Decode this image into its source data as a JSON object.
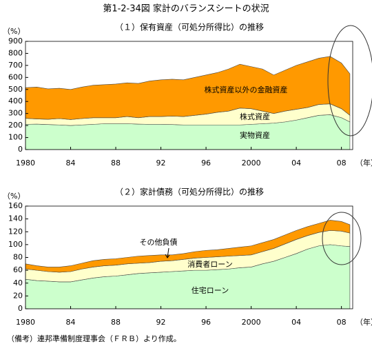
{
  "title": "第1-2-34図 家計のバランスシートの状況",
  "footnote": "（備考）連邦準備制度理事会（ＦＲＢ）より作成。",
  "chart_data": [
    {
      "type": "stacked-area",
      "title": "（１）保有資産（可処分所得比）の推移",
      "y_label": "（%）",
      "x_label": "（年）",
      "x": [
        1980,
        1981,
        1982,
        1983,
        1984,
        1985,
        1986,
        1987,
        1988,
        1989,
        1990,
        1991,
        1992,
        1993,
        1994,
        1995,
        1996,
        1997,
        1998,
        1999,
        2000,
        2001,
        2002,
        2003,
        2004,
        2005,
        2006,
        2007,
        2008,
        2008.75
      ],
      "xlim": [
        1980,
        2009
      ],
      "xticks": [
        1980,
        {
          "value": 1984,
          "label": "84"
        },
        {
          "value": 1988,
          "label": "88"
        },
        {
          "value": 1992,
          "label": "92"
        },
        {
          "value": 1996,
          "label": "96"
        },
        2000,
        {
          "value": 2004,
          "label": "04"
        },
        {
          "value": 2008,
          "label": "08"
        }
      ],
      "ylim": [
        0,
        900
      ],
      "yticks": [
        0,
        100,
        200,
        300,
        400,
        500,
        600,
        700,
        800,
        900
      ],
      "series": [
        {
          "name": "実物資産",
          "color": "#ccffcc",
          "values": [
            210,
            212,
            208,
            205,
            200,
            205,
            210,
            215,
            215,
            215,
            212,
            210,
            210,
            208,
            205,
            205,
            205,
            205,
            205,
            205,
            210,
            215,
            220,
            230,
            245,
            265,
            285,
            290,
            265,
            230
          ]
        },
        {
          "name": "株式資産",
          "color": "#ffffcc",
          "values": [
            50,
            43,
            44,
            53,
            50,
            53,
            55,
            50,
            50,
            60,
            53,
            65,
            65,
            70,
            70,
            80,
            90,
            105,
            115,
            140,
            130,
            105,
            80,
            90,
            90,
            85,
            90,
            90,
            75,
            55
          ]
        },
        {
          "name": "株式資産以外の金融資産",
          "color": "#ff9900",
          "values": [
            255,
            265,
            253,
            252,
            250,
            262,
            270,
            275,
            280,
            280,
            285,
            295,
            305,
            307,
            305,
            315,
            325,
            330,
            350,
            365,
            350,
            350,
            320,
            340,
            365,
            380,
            385,
            395,
            380,
            345
          ]
        }
      ]
    },
    {
      "type": "stacked-area",
      "title": "（２）家計債務（可処分所得比）の推移",
      "y_label": "（%）",
      "x_label": "（年）",
      "x": [
        1980,
        1981,
        1982,
        1983,
        1984,
        1985,
        1986,
        1987,
        1988,
        1989,
        1990,
        1991,
        1992,
        1993,
        1994,
        1995,
        1996,
        1997,
        1998,
        1999,
        2000,
        2001,
        2002,
        2003,
        2004,
        2005,
        2006,
        2007,
        2008,
        2008.75
      ],
      "xlim": [
        1980,
        2009
      ],
      "xticks": [
        1980,
        {
          "value": 1984,
          "label": "84"
        },
        {
          "value": 1988,
          "label": "88"
        },
        {
          "value": 1992,
          "label": "92"
        },
        {
          "value": 1996,
          "label": "96"
        },
        2000,
        {
          "value": 2004,
          "label": "04"
        },
        {
          "value": 2008,
          "label": "08"
        }
      ],
      "ylim": [
        0,
        160
      ],
      "yticks": [
        0,
        20,
        40,
        60,
        80,
        100,
        120,
        140,
        160
      ],
      "series": [
        {
          "name": "住宅ローン",
          "color": "#ccffcc",
          "values": [
            46,
            44,
            43,
            42,
            42,
            45,
            48,
            50,
            51,
            53,
            55,
            56,
            57,
            58,
            59,
            60,
            60,
            61,
            62,
            64,
            65,
            70,
            74,
            80,
            86,
            93,
            98,
            100,
            98,
            97
          ]
        },
        {
          "name": "消費者ローン",
          "color": "#ffffcc",
          "values": [
            16,
            16,
            15,
            15,
            16,
            17,
            17,
            17,
            17,
            17,
            16,
            16,
            17,
            17,
            18,
            19,
            20,
            20,
            20,
            19,
            19,
            19,
            20,
            21,
            22,
            21,
            21,
            22,
            23,
            21
          ]
        },
        {
          "name": "その他負債",
          "color": "#ff9900",
          "values": [
            8,
            7,
            7,
            8,
            9,
            9,
            10,
            10,
            10,
            10,
            11,
            11,
            10,
            9,
            9,
            10,
            11,
            11,
            12,
            13,
            14,
            14,
            14,
            14,
            14,
            14,
            14,
            16,
            15,
            13
          ]
        }
      ]
    }
  ]
}
